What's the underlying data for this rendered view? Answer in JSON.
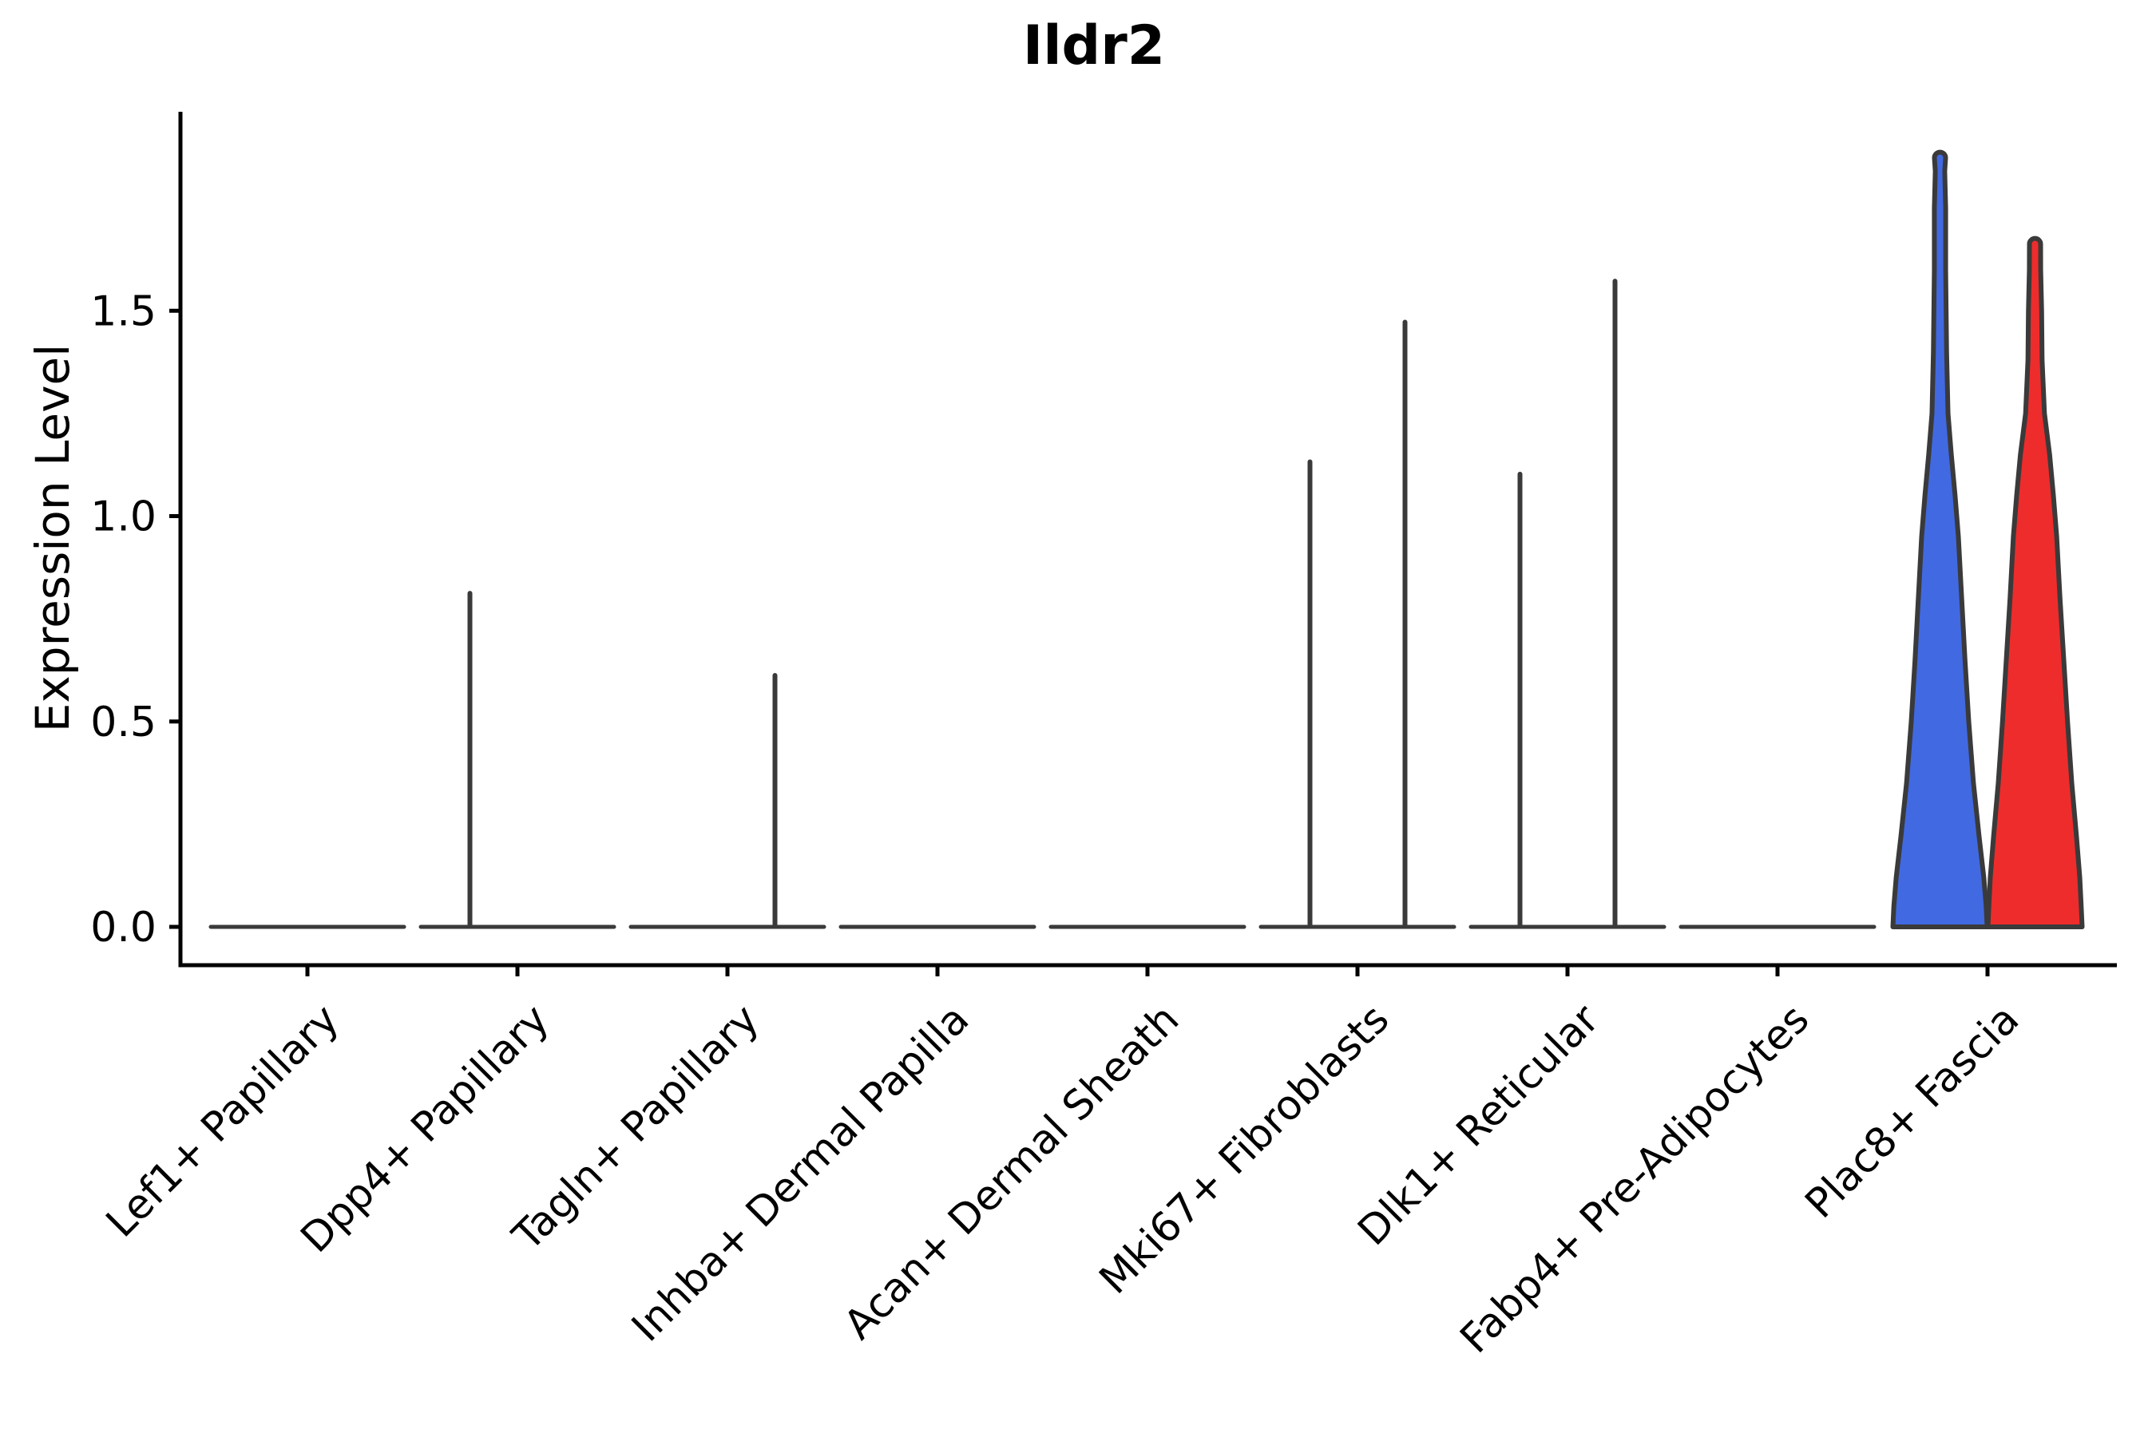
{
  "chart_data": {
    "type": "violin",
    "title": "Ildr2",
    "xlabel": "",
    "ylabel": "Expression Level",
    "legend": "none",
    "grid": false,
    "ylim": [
      -0.09,
      1.98
    ],
    "y_ticks": [
      0.0,
      0.5,
      1.0,
      1.5
    ],
    "y_tick_labels": [
      "0.0",
      "0.5",
      "1.0",
      "1.5"
    ],
    "categories": [
      "Lef1+ Papillary",
      "Dpp4+ Papillary",
      "Tagln+ Papillary",
      "Inhba+ Dermal Papilla",
      "Acan+ Dermal Sheath",
      "Mki67+ Fibroblasts",
      "Dlk1+ Reticular",
      "Fabp4+ Pre-Adipocytes",
      "Plac8+ Fascia"
    ],
    "split_groups_per_category": 2,
    "group_colors": [
      "#4169E1",
      "#EE2C2C"
    ],
    "colors": {
      "group1_fill": "#4169E1",
      "group2_fill": "#EE2C2C",
      "outline": "#3a3a3a",
      "axis": "#000000",
      "background": "#ffffff"
    },
    "violins": [
      {
        "category": "Lef1+ Papillary",
        "groups": [
          {
            "shape": "flat",
            "max": 0.0
          },
          {
            "shape": "flat",
            "max": 0.0
          }
        ]
      },
      {
        "category": "Dpp4+ Papillary",
        "groups": [
          {
            "shape": "spike",
            "max": 0.82
          },
          {
            "shape": "flat",
            "max": 0.0
          }
        ]
      },
      {
        "category": "Tagln+ Papillary",
        "groups": [
          {
            "shape": "flat",
            "max": 0.0
          },
          {
            "shape": "spike",
            "max": 0.62
          }
        ]
      },
      {
        "category": "Inhba+ Dermal Papilla",
        "groups": [
          {
            "shape": "flat",
            "max": 0.0
          },
          {
            "shape": "flat",
            "max": 0.0
          }
        ]
      },
      {
        "category": "Acan+ Dermal Sheath",
        "groups": [
          {
            "shape": "flat",
            "max": 0.0
          },
          {
            "shape": "flat",
            "max": 0.0
          }
        ]
      },
      {
        "category": "Mki67+ Fibroblasts",
        "groups": [
          {
            "shape": "spike",
            "max": 1.14
          },
          {
            "shape": "spike",
            "max": 1.48
          }
        ]
      },
      {
        "category": "Dlk1+ Reticular",
        "groups": [
          {
            "shape": "spike",
            "max": 1.11
          },
          {
            "shape": "spike",
            "max": 1.58
          }
        ]
      },
      {
        "category": "Fabp4+ Pre-Adipocytes",
        "groups": [
          {
            "shape": "flat",
            "max": 0.0
          },
          {
            "shape": "flat",
            "max": 0.0
          }
        ]
      },
      {
        "category": "Plac8+ Fascia",
        "groups": [
          {
            "shape": "violin",
            "max": 1.89,
            "profile": [
              [
                0.0,
                1.0
              ],
              [
                0.05,
                0.98
              ],
              [
                0.12,
                0.93
              ],
              [
                0.22,
                0.83
              ],
              [
                0.35,
                0.71
              ],
              [
                0.5,
                0.61
              ],
              [
                0.65,
                0.53
              ],
              [
                0.8,
                0.46
              ],
              [
                0.95,
                0.39
              ],
              [
                1.05,
                0.32
              ],
              [
                1.15,
                0.24
              ],
              [
                1.25,
                0.17
              ],
              [
                1.4,
                0.14
              ],
              [
                1.6,
                0.12
              ],
              [
                1.75,
                0.12
              ],
              [
                1.84,
                0.1
              ]
            ]
          },
          {
            "shape": "violin",
            "max": 1.68,
            "profile": [
              [
                0.0,
                1.0
              ],
              [
                0.05,
                0.98
              ],
              [
                0.12,
                0.95
              ],
              [
                0.22,
                0.88
              ],
              [
                0.35,
                0.78
              ],
              [
                0.5,
                0.69
              ],
              [
                0.65,
                0.61
              ],
              [
                0.8,
                0.53
              ],
              [
                0.95,
                0.46
              ],
              [
                1.05,
                0.39
              ],
              [
                1.15,
                0.31
              ],
              [
                1.25,
                0.2
              ],
              [
                1.38,
                0.15
              ],
              [
                1.5,
                0.14
              ],
              [
                1.6,
                0.12
              ]
            ]
          }
        ]
      }
    ]
  }
}
